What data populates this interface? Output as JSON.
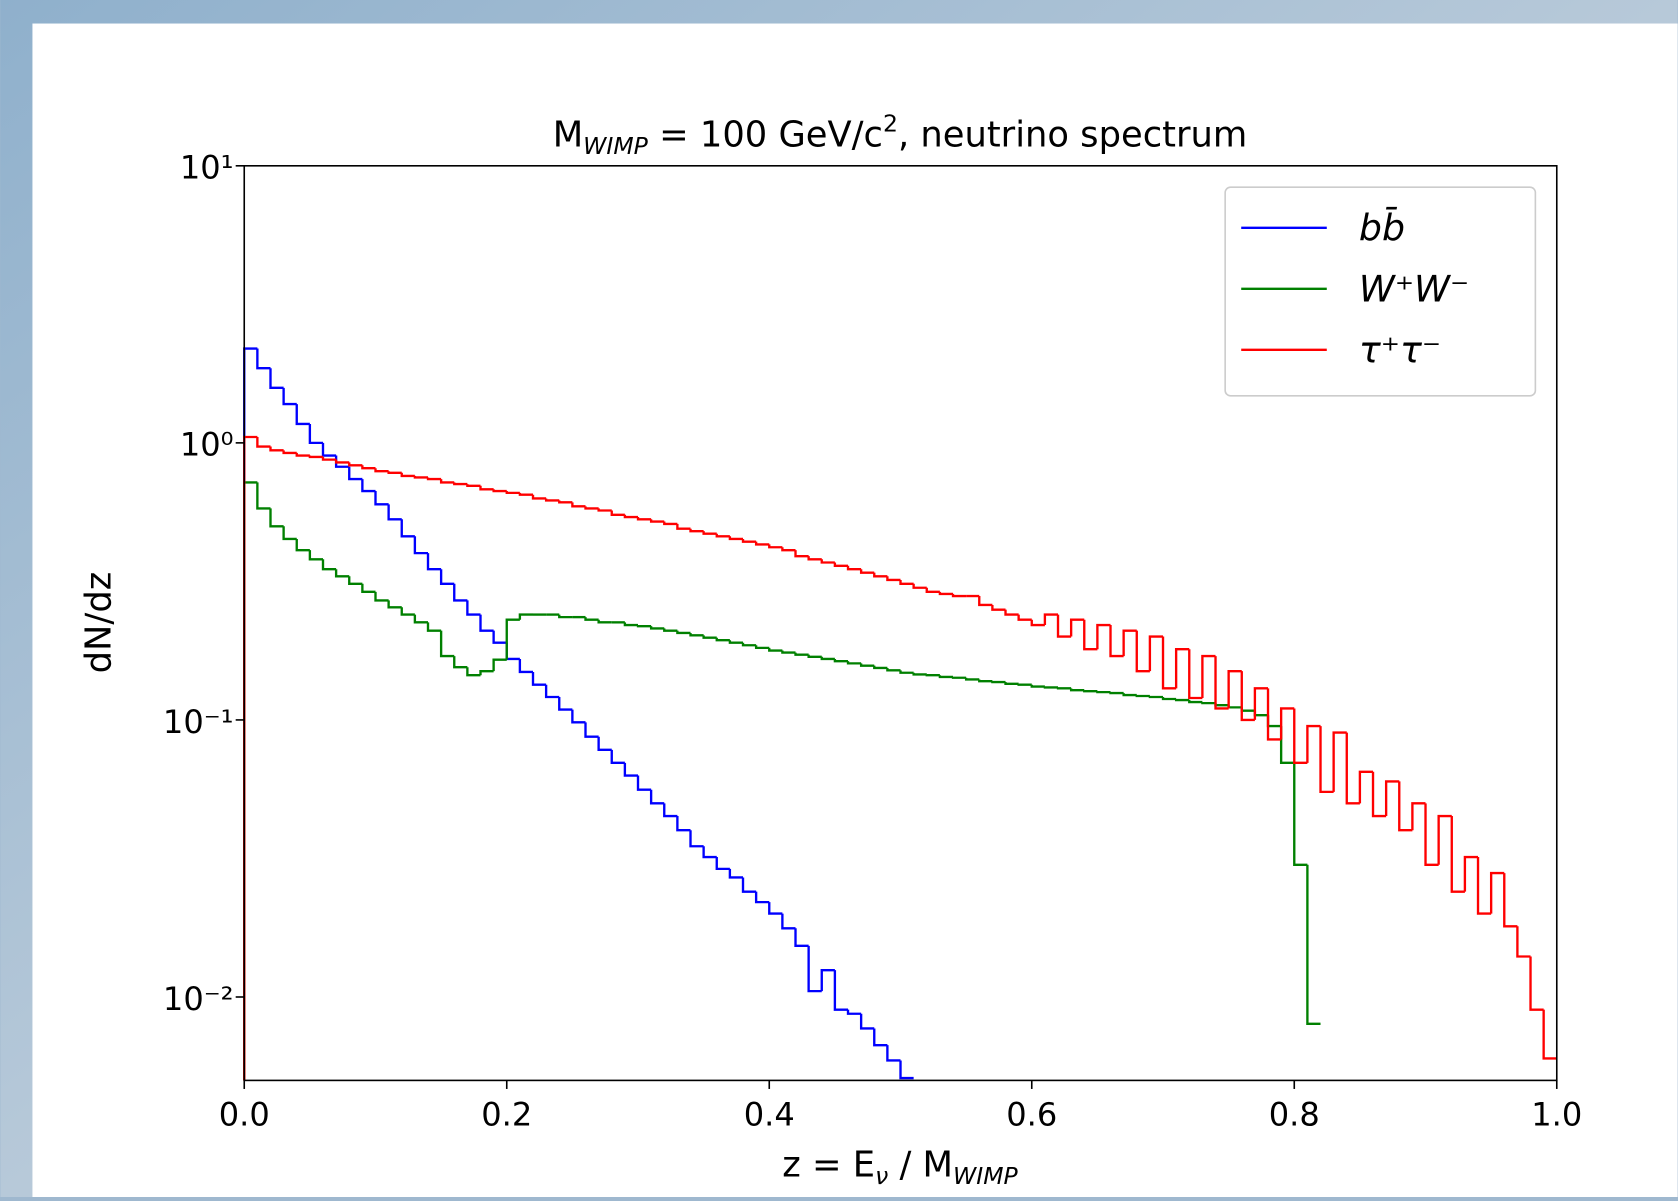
{
  "chart_data": {
    "type": "histogram-step",
    "title": [
      "M",
      "WIMP",
      " = 100 GeV/c",
      "2",
      ", neutrino spectrum"
    ],
    "xlabel": [
      "z = E",
      "ν",
      " / M",
      "WIMP"
    ],
    "ylabel": "dN/dz",
    "yscale": "log",
    "legend": "upper right",
    "xlim": [
      0,
      1
    ],
    "ylim": [
      0.005,
      10
    ],
    "xticks": [
      {
        "value": 0,
        "label": "0.0"
      },
      0.2,
      0.4,
      0.6,
      0.8,
      {
        "value": 1,
        "label": "1.0"
      }
    ],
    "yticks": [
      {
        "value": 0.01,
        "label": "10⁻²"
      },
      {
        "value": 0.1,
        "label": "10⁻¹"
      },
      {
        "value": 1,
        "label": "10⁰"
      },
      {
        "value": 10,
        "label": "10¹"
      }
    ],
    "bins": [
      0,
      0.01,
      0.02,
      0.03,
      0.04,
      0.05,
      0.06,
      0.07,
      0.08,
      0.09,
      0.1,
      0.11,
      0.12,
      0.13,
      0.14,
      0.15,
      0.16,
      0.17,
      0.18,
      0.19,
      0.2,
      0.21,
      0.22,
      0.23,
      0.24,
      0.25,
      0.26,
      0.27,
      0.28,
      0.29,
      0.3,
      0.31,
      0.32,
      0.33,
      0.34,
      0.35,
      0.36,
      0.37,
      0.38,
      0.39,
      0.4,
      0.41,
      0.42,
      0.43,
      0.44,
      0.45,
      0.46,
      0.47,
      0.48,
      0.49,
      0.5,
      0.51,
      0.52,
      0.53,
      0.54,
      0.55,
      0.56,
      0.57,
      0.58,
      0.59,
      0.6,
      0.61,
      0.62,
      0.63,
      0.64,
      0.65,
      0.66,
      0.67,
      0.68,
      0.69,
      0.7,
      0.71,
      0.72,
      0.73,
      0.74,
      0.75,
      0.76,
      0.77,
      0.78,
      0.79,
      0.8,
      0.81,
      0.82,
      0.83,
      0.84,
      0.85,
      0.86,
      0.87,
      0.88,
      0.89,
      0.9,
      0.91,
      0.92,
      0.93,
      0.94,
      0.95,
      0.96,
      0.97,
      0.98,
      0.99,
      1.0
    ],
    "series": [
      {
        "name": "bb̄",
        "color": "#0000ff",
        "values": [
          2.19,
          1.86,
          1.58,
          1.38,
          1.17,
          1.0,
          0.9,
          0.82,
          0.74,
          0.67,
          0.6,
          0.53,
          0.46,
          0.4,
          0.35,
          0.31,
          0.27,
          0.24,
          0.21,
          0.19,
          0.166,
          0.149,
          0.134,
          0.121,
          0.109,
          0.098,
          0.087,
          0.078,
          0.07,
          0.063,
          0.056,
          0.05,
          0.045,
          0.04,
          0.035,
          0.032,
          0.029,
          0.027,
          0.024,
          0.022,
          0.02,
          0.0177,
          0.0153,
          0.0105,
          0.0125,
          0.009,
          0.0087,
          0.0077,
          0.0067,
          0.0059,
          0.0051,
          null,
          null,
          null,
          null,
          null,
          null,
          null,
          null,
          null,
          null,
          null,
          null,
          null,
          null,
          null,
          null,
          null,
          null,
          null,
          null,
          null,
          null,
          null,
          null,
          null,
          null,
          null,
          null,
          null,
          null,
          null,
          null,
          null,
          null,
          null,
          null,
          null,
          null,
          null,
          null,
          null,
          null,
          null,
          null,
          null,
          null,
          null,
          null,
          null
        ]
      },
      {
        "name": "W⁺W⁻",
        "color": "#008000",
        "values": [
          0.72,
          0.58,
          0.5,
          0.45,
          0.41,
          0.38,
          0.35,
          0.33,
          0.31,
          0.29,
          0.27,
          0.255,
          0.24,
          0.225,
          0.21,
          0.17,
          0.155,
          0.145,
          0.15,
          0.165,
          0.23,
          0.24,
          0.24,
          0.24,
          0.235,
          0.235,
          0.23,
          0.225,
          0.225,
          0.22,
          0.218,
          0.214,
          0.21,
          0.206,
          0.202,
          0.198,
          0.194,
          0.19,
          0.186,
          0.182,
          0.178,
          0.175,
          0.172,
          0.169,
          0.166,
          0.163,
          0.16,
          0.157,
          0.154,
          0.151,
          0.148,
          0.146,
          0.145,
          0.143,
          0.142,
          0.14,
          0.138,
          0.137,
          0.135,
          0.134,
          0.132,
          0.131,
          0.13,
          0.128,
          0.127,
          0.126,
          0.125,
          0.123,
          0.122,
          0.121,
          0.119,
          0.118,
          0.116,
          0.115,
          0.113,
          0.111,
          0.108,
          0.104,
          0.095,
          0.07,
          0.03,
          0.008,
          null,
          null,
          null,
          null,
          null,
          null,
          null,
          null,
          null,
          null,
          null,
          null,
          null,
          null,
          null,
          null,
          null,
          null
        ]
      },
      {
        "name": "τ⁺τ⁻",
        "color": "#ff0000",
        "values": [
          1.05,
          0.97,
          0.94,
          0.92,
          0.9,
          0.89,
          0.87,
          0.85,
          0.83,
          0.81,
          0.79,
          0.78,
          0.76,
          0.75,
          0.74,
          0.72,
          0.71,
          0.7,
          0.68,
          0.67,
          0.66,
          0.65,
          0.63,
          0.62,
          0.61,
          0.59,
          0.58,
          0.57,
          0.55,
          0.54,
          0.53,
          0.52,
          0.51,
          0.49,
          0.48,
          0.47,
          0.46,
          0.45,
          0.44,
          0.43,
          0.42,
          0.41,
          0.39,
          0.38,
          0.37,
          0.36,
          0.35,
          0.34,
          0.33,
          0.32,
          0.31,
          0.3,
          0.29,
          0.285,
          0.28,
          0.28,
          0.26,
          0.25,
          0.24,
          0.23,
          0.22,
          0.24,
          0.2,
          0.23,
          0.18,
          0.22,
          0.17,
          0.21,
          0.15,
          0.2,
          0.13,
          0.18,
          0.12,
          0.17,
          0.11,
          0.15,
          0.1,
          0.13,
          0.085,
          0.11,
          0.07,
          0.095,
          0.055,
          0.09,
          0.05,
          0.065,
          0.045,
          0.06,
          0.04,
          0.05,
          0.03,
          0.045,
          0.024,
          0.032,
          0.02,
          0.028,
          0.018,
          0.014,
          0.009,
          0.006
        ]
      }
    ]
  }
}
